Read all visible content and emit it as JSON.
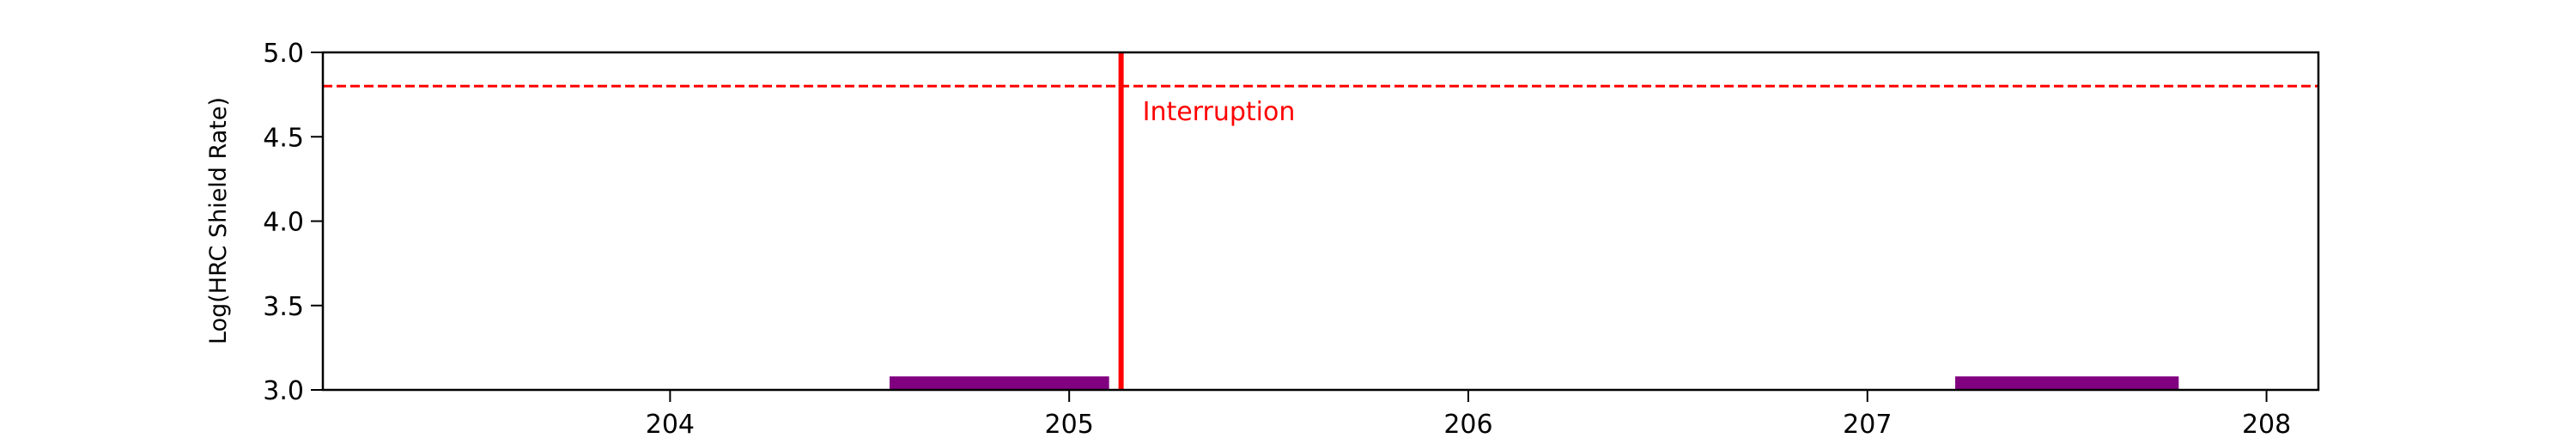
{
  "chart_data": {
    "type": "bar",
    "title": "",
    "xlabel": "",
    "ylabel": "Log(HRC Shield Rate)",
    "xlim": [
      203.13,
      208.13
    ],
    "ylim": [
      3.0,
      5.0
    ],
    "xticks": [
      "204",
      "205",
      "206",
      "207",
      "208"
    ],
    "xtick_values": [
      204,
      205,
      206,
      207,
      208
    ],
    "yticks": [
      "3.0",
      "3.5",
      "4.0",
      "4.5",
      "5.0"
    ],
    "ytick_values": [
      3.0,
      3.5,
      4.0,
      4.5,
      5.0
    ],
    "grid": false,
    "bars": [
      {
        "x_start": 204.55,
        "x_end": 205.1,
        "y_bottom": 3.0,
        "y_top": 3.08
      },
      {
        "x_start": 207.22,
        "x_end": 207.78,
        "y_bottom": 3.0,
        "y_top": 3.08
      }
    ],
    "threshold_line": {
      "y": 4.8,
      "style": "dashed"
    },
    "interruption": {
      "x": 205.13,
      "label": "Interruption"
    },
    "colors": {
      "bars": "#800080",
      "threshold": "#ff0000",
      "interruption": "#ff0000",
      "axes": "#000000"
    }
  }
}
